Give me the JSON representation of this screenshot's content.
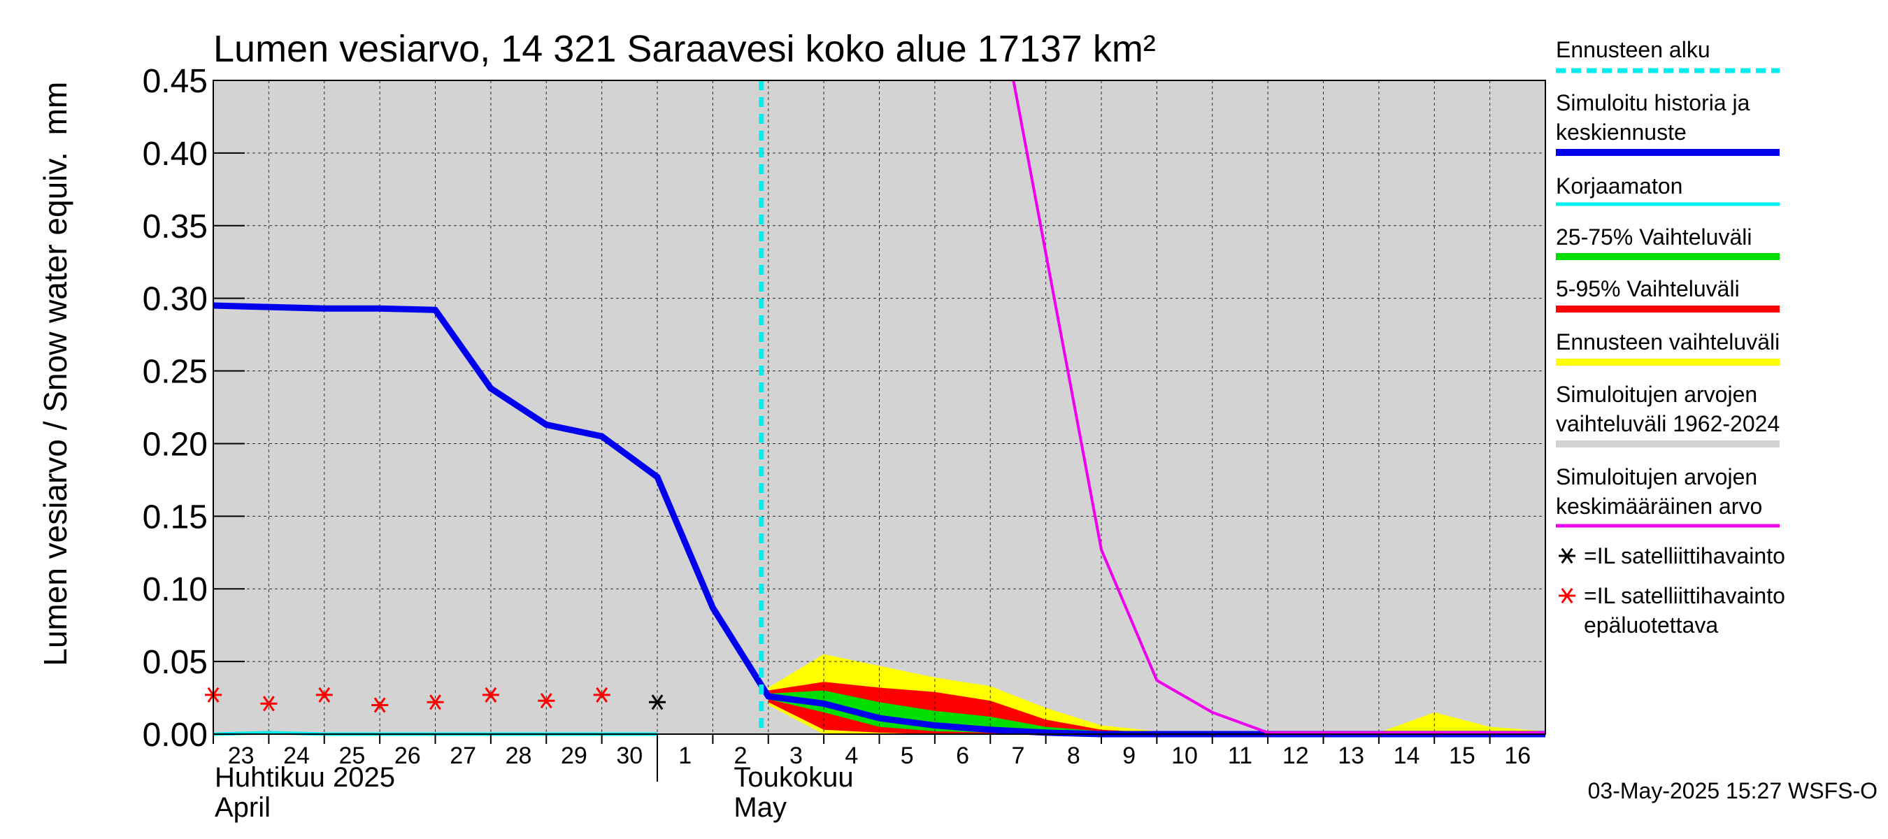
{
  "chart_data": {
    "type": "area",
    "title": "Lumen vesiarvo, 14 321 Saraavesi koko alue 17137 km²",
    "ylabel": "Lumen vesiarvo / Snow water equiv.",
    "yunit": "mm",
    "ylim": [
      0,
      0.45
    ],
    "yticks": [
      "0.00",
      "0.05",
      "0.10",
      "0.15",
      "0.20",
      "0.25",
      "0.30",
      "0.35",
      "0.40",
      "0.45"
    ],
    "x_start": "2025-04-23",
    "x_end": "2025-05-17",
    "x_tick_labels": [
      {
        "date": "2025-04-23",
        "label": "23"
      },
      {
        "date": "2025-04-24",
        "label": "24"
      },
      {
        "date": "2025-04-25",
        "label": "25"
      },
      {
        "date": "2025-04-26",
        "label": "26"
      },
      {
        "date": "2025-04-27",
        "label": "27"
      },
      {
        "date": "2025-04-28",
        "label": "28"
      },
      {
        "date": "2025-04-29",
        "label": "29"
      },
      {
        "date": "2025-04-30",
        "label": "30"
      },
      {
        "date": "2025-05-01",
        "label": "1"
      },
      {
        "date": "2025-05-02",
        "label": "2"
      },
      {
        "date": "2025-05-03",
        "label": "3"
      },
      {
        "date": "2025-05-04",
        "label": "4"
      },
      {
        "date": "2025-05-05",
        "label": "5"
      },
      {
        "date": "2025-05-06",
        "label": "6"
      },
      {
        "date": "2025-05-07",
        "label": "7"
      },
      {
        "date": "2025-05-08",
        "label": "8"
      },
      {
        "date": "2025-05-09",
        "label": "9"
      },
      {
        "date": "2025-05-10",
        "label": "10"
      },
      {
        "date": "2025-05-11",
        "label": "11"
      },
      {
        "date": "2025-05-12",
        "label": "12"
      },
      {
        "date": "2025-05-13",
        "label": "13"
      },
      {
        "date": "2025-05-14",
        "label": "14"
      },
      {
        "date": "2025-05-15",
        "label": "15"
      },
      {
        "date": "2025-05-16",
        "label": "16"
      }
    ],
    "month_labels": [
      {
        "line1": "Huhtikuu  2025",
        "line2": "April"
      },
      {
        "line1": "Toukokuu",
        "line2": "May"
      }
    ],
    "month_separator": "2025-05-01",
    "forecast_start": "2025-05-02T21:00",
    "grid": true,
    "legend_position": "right",
    "series": [
      {
        "name": "Simuloitujen arvojen vaihteluväli 1962-2024",
        "kind": "band",
        "color": "#d3d3d3",
        "x": [
          "2025-04-23",
          "2025-05-17"
        ],
        "lower": [
          0,
          0
        ],
        "upper": [
          0.45,
          0.45
        ]
      },
      {
        "name": "Ennusteen vaihteluväli",
        "kind": "band",
        "color": "#ffff00",
        "x": [
          "2025-05-03",
          "2025-05-04",
          "2025-05-05",
          "2025-05-06",
          "2025-05-07",
          "2025-05-08",
          "2025-05-09",
          "2025-05-10",
          "2025-05-11",
          "2025-05-12",
          "2025-05-13",
          "2025-05-14",
          "2025-05-15",
          "2025-05-16",
          "2025-05-17"
        ],
        "lower": [
          0.02,
          0,
          0,
          0,
          0,
          0,
          0,
          0,
          0,
          0,
          0,
          0,
          0,
          0,
          0
        ],
        "upper": [
          0.032,
          0.055,
          0.047,
          0.039,
          0.033,
          0.018,
          0.006,
          0.002,
          0.001,
          0.001,
          0.001,
          0.001,
          0.015,
          0.005,
          0.002
        ]
      },
      {
        "name": "5-95% Vaihteluväli",
        "kind": "band",
        "color": "#ff0000",
        "x": [
          "2025-05-03",
          "2025-05-04",
          "2025-05-05",
          "2025-05-06",
          "2025-05-07",
          "2025-05-08",
          "2025-05-09",
          "2025-05-10",
          "2025-05-17"
        ],
        "lower": [
          0.022,
          0.003,
          0.001,
          0,
          0,
          0,
          0,
          0,
          0
        ],
        "upper": [
          0.03,
          0.036,
          0.032,
          0.029,
          0.023,
          0.01,
          0.003,
          0.001,
          0.001
        ]
      },
      {
        "name": "25-75% Vaihteluväli",
        "kind": "band",
        "color": "#00dd00",
        "x": [
          "2025-05-03",
          "2025-05-04",
          "2025-05-05",
          "2025-05-06",
          "2025-05-07",
          "2025-05-08",
          "2025-05-09",
          "2025-05-10",
          "2025-05-17"
        ],
        "lower": [
          0.024,
          0.015,
          0.005,
          0.002,
          0.001,
          0,
          0,
          0,
          0
        ],
        "upper": [
          0.028,
          0.03,
          0.022,
          0.016,
          0.012,
          0.005,
          0.002,
          0.001,
          0.001
        ]
      },
      {
        "name": "Simuloitu historia ja keskiennuste",
        "kind": "line",
        "color": "#0000ee",
        "x": [
          "2025-04-23",
          "2025-04-24",
          "2025-04-25",
          "2025-04-26",
          "2025-04-27",
          "2025-04-28",
          "2025-04-29",
          "2025-04-30",
          "2025-05-01",
          "2025-05-02",
          "2025-05-03",
          "2025-05-04",
          "2025-05-05",
          "2025-05-06",
          "2025-05-07",
          "2025-05-08",
          "2025-05-09",
          "2025-05-10",
          "2025-05-17"
        ],
        "y": [
          0.295,
          0.294,
          0.293,
          0.293,
          0.292,
          0.238,
          0.213,
          0.205,
          0.177,
          0.087,
          0.026,
          0.021,
          0.011,
          0.006,
          0.003,
          0.001,
          0,
          0,
          0
        ]
      },
      {
        "name": "Korjaamaton",
        "kind": "line",
        "color": "#00eeee",
        "x": [
          "2025-04-23",
          "2025-04-24",
          "2025-04-25",
          "2025-05-01"
        ],
        "y": [
          0,
          0.001,
          0,
          0
        ]
      },
      {
        "name": "Simuloitujen arvojen keskimääräinen arvo",
        "kind": "line",
        "color": "#ee00ee",
        "x": [
          "2025-05-07T10:00",
          "2025-05-09",
          "2025-05-10",
          "2025-05-11",
          "2025-05-12",
          "2025-05-17"
        ],
        "y": [
          0.45,
          0.127,
          0.037,
          0.015,
          0.001,
          0.001
        ]
      },
      {
        "name": "=IL satelliittihavainto",
        "kind": "points",
        "color": "#000000",
        "x": [
          "2025-05-01"
        ],
        "y": [
          0.022
        ]
      },
      {
        "name": "=IL satelliittihavainto epäluotettava",
        "kind": "points",
        "color": "#ff0000",
        "x": [
          "2025-04-23",
          "2025-04-24",
          "2025-04-25",
          "2025-04-26",
          "2025-04-27",
          "2025-04-28",
          "2025-04-29",
          "2025-04-30"
        ],
        "y": [
          0.027,
          0.021,
          0.027,
          0.02,
          0.022,
          0.027,
          0.023,
          0.027
        ]
      }
    ],
    "legend": [
      {
        "label": "Ennusteen alku",
        "color": "#00eeee",
        "style": "dashed"
      },
      {
        "label": "Simuloitu historia ja\nkeskiennuste",
        "color": "#0000ee",
        "style": "thick"
      },
      {
        "label": "Korjaamaton",
        "color": "#00eeee",
        "style": "line"
      },
      {
        "label": "25-75% Vaihteluväli",
        "color": "#00dd00",
        "style": "thick"
      },
      {
        "label": "5-95% Vaihteluväli",
        "color": "#ff0000",
        "style": "thick"
      },
      {
        "label": "Ennusteen vaihteluväli",
        "color": "#ffff00",
        "style": "thick"
      },
      {
        "label": "Simuloitujen arvojen\nvaihteluväli 1962-2024",
        "color": "#d3d3d3",
        "style": "thick"
      },
      {
        "label": "Simuloitujen arvojen\nkeskimääräinen arvo",
        "color": "#ee00ee",
        "style": "line"
      },
      {
        "label": "=IL satelliittihavainto",
        "color": "#000000",
        "style": "star"
      },
      {
        "label": "=IL satelliittihavainto\nepäluotettava",
        "color": "#ff0000",
        "style": "star"
      }
    ],
    "timestamp": "03-May-2025 15:27 WSFS-O"
  }
}
